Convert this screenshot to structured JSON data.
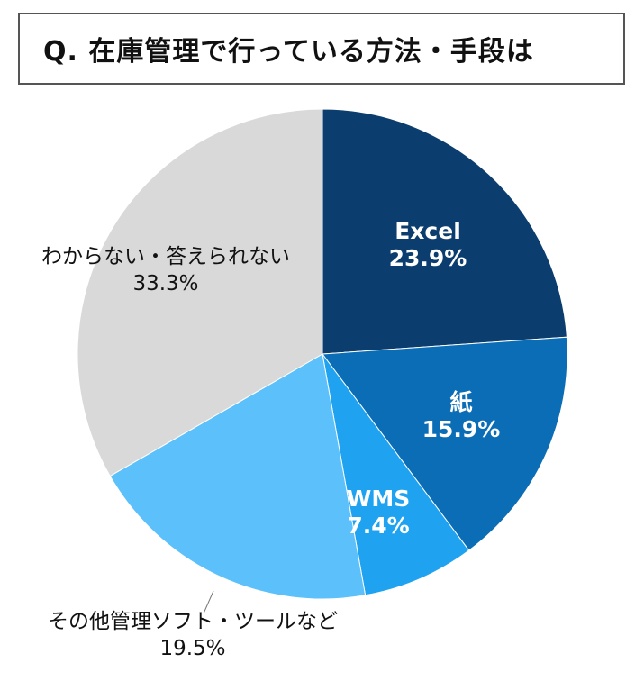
{
  "chart_data": {
    "type": "pie",
    "title": "Q. 在庫管理で行っている方法・手段は",
    "slices": [
      {
        "label": "Excel",
        "value": 23.9,
        "value_label": "23.9%",
        "color": "#0b3d6e",
        "label_color": "#ffffff"
      },
      {
        "label": "紙",
        "value": 15.9,
        "value_label": "15.9%",
        "color": "#0b6db5",
        "label_color": "#ffffff"
      },
      {
        "label": "WMS",
        "value": 7.4,
        "value_label": "7.4%",
        "color": "#1fa3f0",
        "label_color": "#ffffff"
      },
      {
        "label": "その他管理ソフト・ツールなど",
        "value": 19.5,
        "value_label": "19.5%",
        "color": "#5cc0fa",
        "label_color": "#111111"
      },
      {
        "label": "わからない・答えられない",
        "value": 33.3,
        "value_label": "33.3%",
        "color": "#d9d9d9",
        "label_color": "#111111"
      }
    ],
    "start_angle": "top",
    "direction": "clockwise"
  }
}
